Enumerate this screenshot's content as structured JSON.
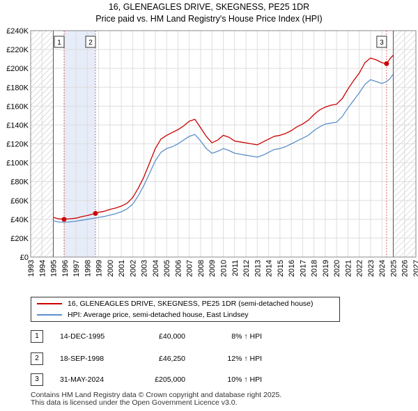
{
  "chart_data": {
    "type": "line",
    "title": "16, GLENEAGLES DRIVE, SKEGNESS, PE25 1DR",
    "subtitle": "Price paid vs. HM Land Registry's House Price Index (HPI)",
    "xlim": [
      1993,
      2027
    ],
    "ylim": [
      0,
      240000
    ],
    "x_ticks": [
      "1993",
      "1994",
      "1995",
      "1996",
      "1997",
      "1998",
      "1999",
      "2000",
      "2001",
      "2002",
      "2003",
      "2004",
      "2005",
      "2006",
      "2007",
      "2008",
      "2009",
      "2010",
      "2011",
      "2012",
      "2013",
      "2014",
      "2015",
      "2016",
      "2017",
      "2018",
      "2019",
      "2020",
      "2021",
      "2022",
      "2023",
      "2024",
      "2025",
      "2026",
      "2027"
    ],
    "y_ticks": [
      {
        "value": 0,
        "label": "£0"
      },
      {
        "value": 20000,
        "label": "£20K"
      },
      {
        "value": 40000,
        "label": "£40K"
      },
      {
        "value": 60000,
        "label": "£60K"
      },
      {
        "value": 80000,
        "label": "£80K"
      },
      {
        "value": 100000,
        "label": "£100K"
      },
      {
        "value": 120000,
        "label": "£120K"
      },
      {
        "value": 140000,
        "label": "£140K"
      },
      {
        "value": 160000,
        "label": "£160K"
      },
      {
        "value": 180000,
        "label": "£180K"
      },
      {
        "value": 200000,
        "label": "£200K"
      },
      {
        "value": 220000,
        "label": "£220K"
      },
      {
        "value": 240000,
        "label": "£240K"
      }
    ],
    "hatch_before": 1995.0,
    "hatch_after": 2025.0,
    "shaded_ranges": [
      [
        1995.95,
        1998.72
      ]
    ],
    "series": [
      {
        "name": "16, GLENEAGLES DRIVE, SKEGNESS, PE25 1DR (semi-detached house)",
        "color": "#cc0000",
        "points": [
          [
            1995.0,
            42000
          ],
          [
            1995.5,
            40500
          ],
          [
            1995.95,
            40000
          ],
          [
            1996.5,
            40600
          ],
          [
            1997.0,
            41200
          ],
          [
            1997.5,
            42800
          ],
          [
            1998.0,
            44000
          ],
          [
            1998.72,
            46250
          ],
          [
            1999.0,
            47500
          ],
          [
            1999.5,
            48500
          ],
          [
            2000.0,
            50500
          ],
          [
            2000.5,
            52000
          ],
          [
            2001.0,
            54000
          ],
          [
            2001.5,
            57000
          ],
          [
            2002.0,
            63000
          ],
          [
            2002.5,
            73000
          ],
          [
            2003.0,
            85000
          ],
          [
            2003.5,
            100000
          ],
          [
            2004.0,
            115000
          ],
          [
            2004.5,
            125000
          ],
          [
            2005.0,
            129000
          ],
          [
            2005.5,
            132000
          ],
          [
            2006.0,
            135000
          ],
          [
            2006.5,
            139000
          ],
          [
            2007.0,
            144000
          ],
          [
            2007.5,
            146000
          ],
          [
            2008.0,
            137000
          ],
          [
            2008.5,
            128000
          ],
          [
            2009.0,
            121000
          ],
          [
            2009.5,
            124000
          ],
          [
            2010.0,
            129000
          ],
          [
            2010.5,
            127000
          ],
          [
            2011.0,
            123000
          ],
          [
            2011.5,
            122000
          ],
          [
            2012.0,
            121000
          ],
          [
            2012.5,
            120000
          ],
          [
            2013.0,
            119000
          ],
          [
            2013.5,
            122000
          ],
          [
            2014.0,
            125000
          ],
          [
            2014.5,
            128000
          ],
          [
            2015.0,
            129000
          ],
          [
            2015.5,
            131000
          ],
          [
            2016.0,
            134000
          ],
          [
            2016.5,
            138000
          ],
          [
            2017.0,
            141000
          ],
          [
            2017.5,
            145000
          ],
          [
            2018.0,
            151000
          ],
          [
            2018.5,
            156000
          ],
          [
            2019.0,
            159000
          ],
          [
            2019.5,
            161000
          ],
          [
            2020.0,
            162000
          ],
          [
            2020.5,
            168000
          ],
          [
            2021.0,
            178000
          ],
          [
            2021.5,
            187000
          ],
          [
            2022.0,
            195000
          ],
          [
            2022.5,
            206000
          ],
          [
            2023.0,
            211000
          ],
          [
            2023.5,
            209000
          ],
          [
            2024.0,
            206000
          ],
          [
            2024.41,
            205000
          ],
          [
            2024.7,
            210000
          ],
          [
            2025.0,
            214000
          ]
        ]
      },
      {
        "name": "HPI: Average price, semi-detached house, East Lindsey",
        "color": "#5b8fc9",
        "points": [
          [
            1995.0,
            38500
          ],
          [
            1995.5,
            37000
          ],
          [
            1996.0,
            37000
          ],
          [
            1996.5,
            37300
          ],
          [
            1997.0,
            38000
          ],
          [
            1997.5,
            39000
          ],
          [
            1998.0,
            40000
          ],
          [
            1998.5,
            41000
          ],
          [
            1999.0,
            42000
          ],
          [
            1999.5,
            43000
          ],
          [
            2000.0,
            44500
          ],
          [
            2000.5,
            46000
          ],
          [
            2001.0,
            48000
          ],
          [
            2001.5,
            51000
          ],
          [
            2002.0,
            56000
          ],
          [
            2002.5,
            65000
          ],
          [
            2003.0,
            76000
          ],
          [
            2003.5,
            89000
          ],
          [
            2004.0,
            102000
          ],
          [
            2004.5,
            111000
          ],
          [
            2005.0,
            115000
          ],
          [
            2005.5,
            117000
          ],
          [
            2006.0,
            120000
          ],
          [
            2006.5,
            124000
          ],
          [
            2007.0,
            128000
          ],
          [
            2007.5,
            130000
          ],
          [
            2008.0,
            123000
          ],
          [
            2008.5,
            115000
          ],
          [
            2009.0,
            110000
          ],
          [
            2009.5,
            112000
          ],
          [
            2010.0,
            115000
          ],
          [
            2010.5,
            113000
          ],
          [
            2011.0,
            110000
          ],
          [
            2011.5,
            109000
          ],
          [
            2012.0,
            108000
          ],
          [
            2012.5,
            107000
          ],
          [
            2013.0,
            106000
          ],
          [
            2013.5,
            108000
          ],
          [
            2014.0,
            111000
          ],
          [
            2014.5,
            114000
          ],
          [
            2015.0,
            115000
          ],
          [
            2015.5,
            117000
          ],
          [
            2016.0,
            120000
          ],
          [
            2016.5,
            123000
          ],
          [
            2017.0,
            126000
          ],
          [
            2017.5,
            129000
          ],
          [
            2018.0,
            134000
          ],
          [
            2018.5,
            138000
          ],
          [
            2019.0,
            141000
          ],
          [
            2019.5,
            142000
          ],
          [
            2020.0,
            143000
          ],
          [
            2020.5,
            149000
          ],
          [
            2021.0,
            158000
          ],
          [
            2021.5,
            166000
          ],
          [
            2022.0,
            174000
          ],
          [
            2022.5,
            183000
          ],
          [
            2023.0,
            188000
          ],
          [
            2023.5,
            186000
          ],
          [
            2024.0,
            184000
          ],
          [
            2024.41,
            186000
          ],
          [
            2024.7,
            189000
          ],
          [
            2025.0,
            194000
          ]
        ]
      }
    ],
    "markers": [
      {
        "label": "1",
        "x": 1995.95,
        "y": 40000
      },
      {
        "label": "2",
        "x": 1998.72,
        "y": 46250
      },
      {
        "label": "3",
        "x": 2024.41,
        "y": 205000
      }
    ]
  },
  "legend": {
    "property": "16, GLENEAGLES DRIVE, SKEGNESS, PE25 1DR (semi-detached house)",
    "hpi": "HPI: Average price, semi-detached house, East Lindsey",
    "property_color": "#cc0000",
    "hpi_color": "#5b8fc9"
  },
  "transactions": [
    {
      "num": "1",
      "date": "14-DEC-1995",
      "price": "£40,000",
      "hpi": "8% ↑ HPI"
    },
    {
      "num": "2",
      "date": "18-SEP-1998",
      "price": "£46,250",
      "hpi": "12% ↑ HPI"
    },
    {
      "num": "3",
      "date": "31-MAY-2024",
      "price": "£205,000",
      "hpi": "10% ↑ HPI"
    }
  ],
  "footer": {
    "line1": "Contains HM Land Registry data © Crown copyright and database right 2025.",
    "line2": "This data is licensed under the Open Government Licence v3.0."
  }
}
